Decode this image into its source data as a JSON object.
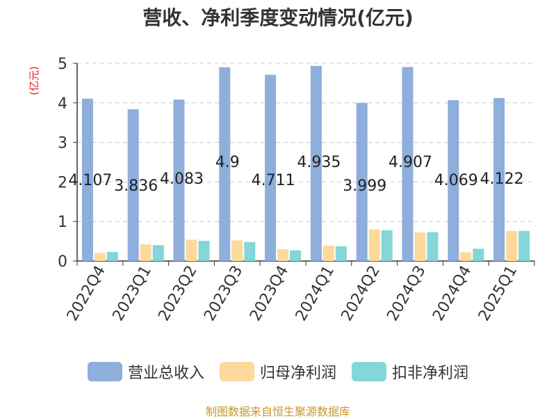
{
  "chart_data": {
    "type": "bar",
    "title": "营收、净利季度变动情况(亿元)",
    "ylabel": "(亿元)",
    "ylim": [
      0,
      5
    ],
    "yticks": [
      0,
      1,
      2,
      3,
      4,
      5
    ],
    "categories": [
      "2022Q4",
      "2023Q1",
      "2023Q2",
      "2023Q3",
      "2023Q4",
      "2024Q1",
      "2024Q2",
      "2024Q3",
      "2024Q4",
      "2025Q1"
    ],
    "series": [
      {
        "name": "营业总收入",
        "color": "#8eaedb",
        "values": [
          4.107,
          3.836,
          4.083,
          4.9,
          4.711,
          4.935,
          3.999,
          4.907,
          4.069,
          4.122
        ],
        "labels": [
          "4.107",
          "3.836",
          "4.083",
          "4.9",
          "4.711",
          "4.935",
          "3.999",
          "4.907",
          "4.069",
          "4.122"
        ]
      },
      {
        "name": "归母净利润",
        "color": "#fdd99b",
        "values": [
          0.2,
          0.42,
          0.54,
          0.52,
          0.3,
          0.39,
          0.8,
          0.72,
          0.22,
          0.76
        ]
      },
      {
        "name": "扣非净利润",
        "color": "#84d6d8",
        "values": [
          0.23,
          0.4,
          0.51,
          0.48,
          0.27,
          0.37,
          0.78,
          0.73,
          0.31,
          0.76
        ]
      }
    ],
    "grid": true,
    "legend_position": "bottom"
  },
  "source_note": "制图数据来自恒生聚源数据库"
}
